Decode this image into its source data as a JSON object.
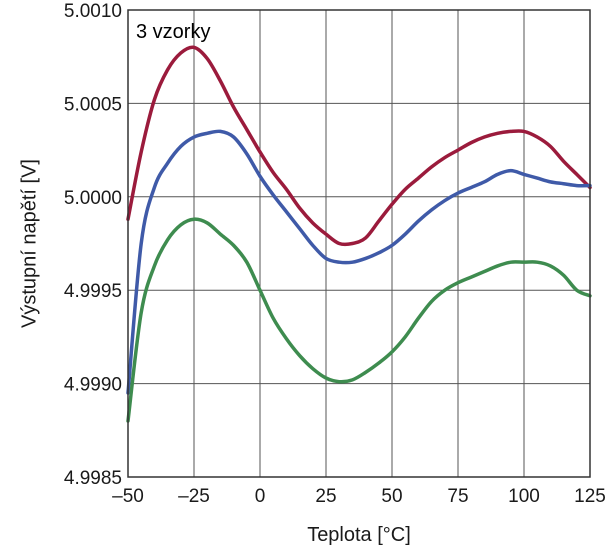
{
  "chart_data": {
    "type": "line",
    "annotation": "3 vzorky",
    "xlabel": "Teplota [°C]",
    "ylabel": "Výstupní napětí [V]",
    "xlim": [
      -50,
      125
    ],
    "ylim": [
      4.9985,
      5.001
    ],
    "x_ticks": [
      -50,
      -25,
      0,
      25,
      50,
      75,
      100,
      125
    ],
    "x_tick_labels": [
      "–50",
      "–25",
      "0",
      "25",
      "50",
      "75",
      "100",
      "125"
    ],
    "y_ticks": [
      4.9985,
      4.999,
      4.9995,
      5.0,
      5.0005,
      5.001
    ],
    "y_tick_labels": [
      "4.9985",
      "4.9990",
      "4.9995",
      "5.0000",
      "5.0005",
      "5.0010"
    ],
    "grid": true,
    "series": [
      {
        "color": "#9b1b3c",
        "points": [
          [
            -50,
            4.99988
          ],
          [
            -45,
            5.00024
          ],
          [
            -40,
            5.00052
          ],
          [
            -35,
            5.00068
          ],
          [
            -30,
            5.00077
          ],
          [
            -25,
            5.0008
          ],
          [
            -20,
            5.00074
          ],
          [
            -15,
            5.00062
          ],
          [
            -10,
            5.00048
          ],
          [
            -5,
            5.00036
          ],
          [
            0,
            5.00024
          ],
          [
            5,
            5.00013
          ],
          [
            10,
            5.00004
          ],
          [
            15,
            4.99994
          ],
          [
            20,
            4.99986
          ],
          [
            25,
            4.9998
          ],
          [
            30,
            4.99975
          ],
          [
            35,
            4.99975
          ],
          [
            40,
            4.99978
          ],
          [
            45,
            4.99987
          ],
          [
            50,
            4.99996
          ],
          [
            55,
            5.00004
          ],
          [
            60,
            5.0001
          ],
          [
            65,
            5.00016
          ],
          [
            70,
            5.00021
          ],
          [
            75,
            5.00025
          ],
          [
            80,
            5.00029
          ],
          [
            85,
            5.00032
          ],
          [
            90,
            5.00034
          ],
          [
            95,
            5.00035
          ],
          [
            100,
            5.00035
          ],
          [
            105,
            5.00032
          ],
          [
            110,
            5.00027
          ],
          [
            115,
            5.00019
          ],
          [
            120,
            5.00012
          ],
          [
            125,
            5.00005
          ]
        ]
      },
      {
        "color": "#3f5aa8",
        "points": [
          [
            -50,
            4.99895
          ],
          [
            -45,
            4.99975
          ],
          [
            -40,
            5.00005
          ],
          [
            -35,
            5.00018
          ],
          [
            -30,
            5.00027
          ],
          [
            -25,
            5.00032
          ],
          [
            -20,
            5.00034
          ],
          [
            -15,
            5.00035
          ],
          [
            -10,
            5.00032
          ],
          [
            -5,
            5.00023
          ],
          [
            0,
            5.00011
          ],
          [
            5,
            5.00001
          ],
          [
            10,
            4.99992
          ],
          [
            15,
            4.99983
          ],
          [
            20,
            4.99974
          ],
          [
            25,
            4.99967
          ],
          [
            30,
            4.99965
          ],
          [
            35,
            4.99965
          ],
          [
            40,
            4.99967
          ],
          [
            45,
            4.9997
          ],
          [
            50,
            4.99974
          ],
          [
            55,
            4.9998
          ],
          [
            60,
            4.99987
          ],
          [
            65,
            4.99993
          ],
          [
            70,
            4.99998
          ],
          [
            75,
            5.00002
          ],
          [
            80,
            5.00005
          ],
          [
            85,
            5.00008
          ],
          [
            90,
            5.00012
          ],
          [
            95,
            5.00014
          ],
          [
            100,
            5.00012
          ],
          [
            105,
            5.0001
          ],
          [
            110,
            5.00008
          ],
          [
            115,
            5.00007
          ],
          [
            120,
            5.00006
          ],
          [
            125,
            5.00006
          ]
        ]
      },
      {
        "color": "#3e8c4f",
        "points": [
          [
            -50,
            4.9988
          ],
          [
            -45,
            4.99938
          ],
          [
            -40,
            4.99963
          ],
          [
            -35,
            4.99977
          ],
          [
            -30,
            4.99985
          ],
          [
            -25,
            4.99988
          ],
          [
            -20,
            4.99986
          ],
          [
            -15,
            4.9998
          ],
          [
            -10,
            4.99974
          ],
          [
            -5,
            4.99965
          ],
          [
            0,
            4.9995
          ],
          [
            5,
            4.99935
          ],
          [
            10,
            4.99924
          ],
          [
            15,
            4.99915
          ],
          [
            20,
            4.99908
          ],
          [
            25,
            4.99903
          ],
          [
            30,
            4.99901
          ],
          [
            35,
            4.99902
          ],
          [
            40,
            4.99906
          ],
          [
            45,
            4.99911
          ],
          [
            50,
            4.99917
          ],
          [
            55,
            4.99925
          ],
          [
            60,
            4.99935
          ],
          [
            65,
            4.99944
          ],
          [
            70,
            4.9995
          ],
          [
            75,
            4.99954
          ],
          [
            80,
            4.99957
          ],
          [
            85,
            4.9996
          ],
          [
            90,
            4.99963
          ],
          [
            95,
            4.99965
          ],
          [
            100,
            4.99965
          ],
          [
            105,
            4.99965
          ],
          [
            110,
            4.99963
          ],
          [
            115,
            4.99958
          ],
          [
            120,
            4.9995
          ],
          [
            125,
            4.99947
          ]
        ]
      }
    ]
  }
}
